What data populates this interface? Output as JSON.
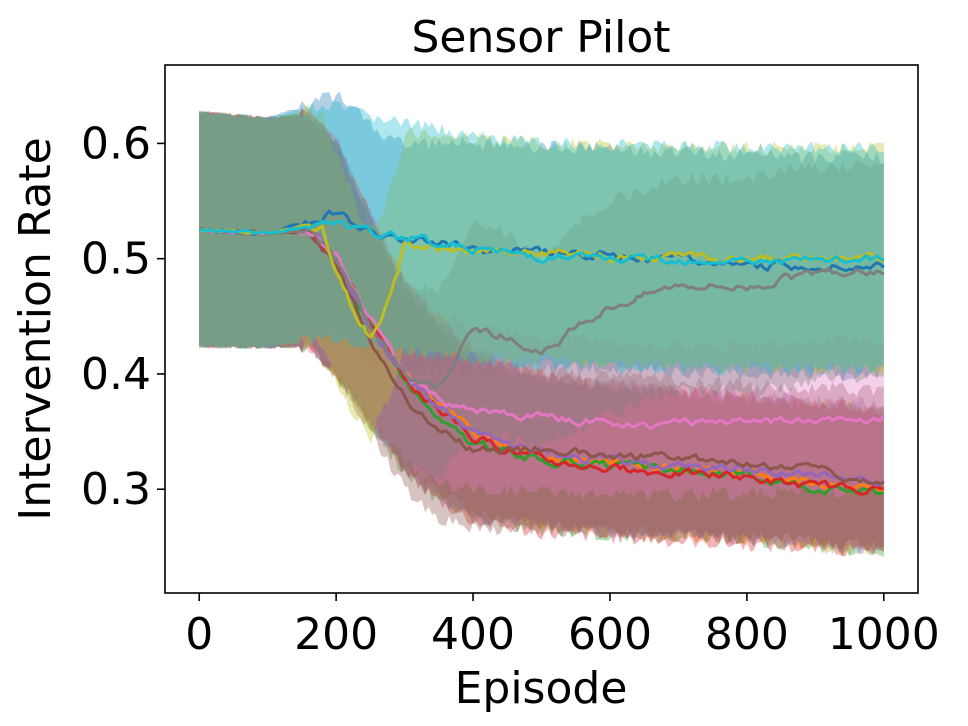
{
  "chart_data": {
    "type": "line",
    "title": "Sensor Pilot",
    "xlabel": "Episode",
    "ylabel": "Intervention Rate",
    "xlim": [
      -50,
      1050
    ],
    "ylim": [
      0.21,
      0.668
    ],
    "xticks": [
      0,
      200,
      400,
      600,
      800,
      1000
    ],
    "yticks": [
      0.3,
      0.4,
      0.5,
      0.6
    ],
    "xtick_labels": [
      "0",
      "200",
      "400",
      "600",
      "800",
      "1000"
    ],
    "ytick_labels": [
      "0.3",
      "0.4",
      "0.5",
      "0.6"
    ],
    "grid": false,
    "legend": "none",
    "band_opacity": 0.35,
    "series": [
      {
        "color": "#1f77b4",
        "x": [
          0,
          100,
          150,
          200,
          230,
          260,
          300,
          400,
          500,
          600,
          700,
          800,
          900,
          1000
        ],
        "y": [
          0.525,
          0.522,
          0.53,
          0.541,
          0.528,
          0.522,
          0.518,
          0.51,
          0.506,
          0.503,
          0.5,
          0.495,
          0.493,
          0.493
        ],
        "lower": [
          0.424,
          0.423,
          0.425,
          0.44,
          0.42,
          0.405,
          0.4,
          0.405,
          0.405,
          0.405,
          0.402,
          0.4,
          0.4,
          0.4
        ],
        "upper": [
          0.627,
          0.622,
          0.632,
          0.642,
          0.63,
          0.61,
          0.6,
          0.6,
          0.597,
          0.595,
          0.592,
          0.59,
          0.588,
          0.588
        ]
      },
      {
        "color": "#ff7f0e",
        "x": [
          0,
          100,
          160,
          200,
          250,
          300,
          350,
          400,
          500,
          600,
          700,
          800,
          900,
          1000
        ],
        "y": [
          0.525,
          0.522,
          0.525,
          0.5,
          0.44,
          0.4,
          0.375,
          0.35,
          0.33,
          0.322,
          0.318,
          0.315,
          0.305,
          0.3
        ],
        "lower": [
          0.424,
          0.423,
          0.424,
          0.4,
          0.36,
          0.32,
          0.3,
          0.28,
          0.27,
          0.265,
          0.26,
          0.255,
          0.25,
          0.245
        ],
        "upper": [
          0.627,
          0.622,
          0.626,
          0.6,
          0.54,
          0.48,
          0.45,
          0.42,
          0.4,
          0.39,
          0.385,
          0.38,
          0.375,
          0.37
        ]
      },
      {
        "color": "#2ca02c",
        "x": [
          0,
          100,
          160,
          200,
          250,
          300,
          350,
          400,
          500,
          600,
          700,
          800,
          900,
          1000
        ],
        "y": [
          0.525,
          0.522,
          0.524,
          0.498,
          0.442,
          0.395,
          0.36,
          0.34,
          0.325,
          0.32,
          0.316,
          0.312,
          0.302,
          0.298
        ],
        "lower": [
          0.424,
          0.423,
          0.424,
          0.4,
          0.355,
          0.315,
          0.29,
          0.275,
          0.265,
          0.26,
          0.258,
          0.255,
          0.25,
          0.245
        ],
        "upper": [
          0.627,
          0.622,
          0.625,
          0.598,
          0.535,
          0.475,
          0.44,
          0.415,
          0.395,
          0.388,
          0.382,
          0.378,
          0.372,
          0.368
        ]
      },
      {
        "color": "#d62728",
        "x": [
          0,
          100,
          160,
          200,
          250,
          300,
          350,
          400,
          500,
          600,
          700,
          800,
          900,
          1000
        ],
        "y": [
          0.525,
          0.522,
          0.524,
          0.502,
          0.445,
          0.392,
          0.37,
          0.345,
          0.325,
          0.318,
          0.314,
          0.31,
          0.302,
          0.3
        ],
        "lower": [
          0.424,
          0.423,
          0.424,
          0.402,
          0.36,
          0.315,
          0.29,
          0.272,
          0.262,
          0.258,
          0.255,
          0.252,
          0.248,
          0.245
        ],
        "upper": [
          0.627,
          0.622,
          0.625,
          0.6,
          0.538,
          0.478,
          0.445,
          0.418,
          0.398,
          0.39,
          0.385,
          0.38,
          0.375,
          0.37
        ]
      },
      {
        "color": "#9467bd",
        "x": [
          0,
          100,
          160,
          200,
          250,
          300,
          350,
          400,
          500,
          600,
          700,
          800,
          900,
          1000
        ],
        "y": [
          0.525,
          0.522,
          0.525,
          0.5,
          0.44,
          0.398,
          0.372,
          0.348,
          0.332,
          0.325,
          0.32,
          0.318,
          0.312,
          0.308
        ],
        "lower": [
          0.424,
          0.423,
          0.424,
          0.4,
          0.358,
          0.318,
          0.292,
          0.275,
          0.268,
          0.262,
          0.26,
          0.256,
          0.252,
          0.248
        ],
        "upper": [
          0.627,
          0.622,
          0.626,
          0.6,
          0.536,
          0.478,
          0.448,
          0.42,
          0.4,
          0.392,
          0.388,
          0.384,
          0.378,
          0.372
        ]
      },
      {
        "color": "#8c564b",
        "x": [
          0,
          100,
          160,
          200,
          250,
          300,
          350,
          400,
          500,
          600,
          700,
          800,
          900,
          1000
        ],
        "y": [
          0.525,
          0.522,
          0.523,
          0.495,
          0.43,
          0.38,
          0.35,
          0.335,
          0.335,
          0.33,
          0.328,
          0.322,
          0.318,
          0.305
        ],
        "lower": [
          0.424,
          0.423,
          0.424,
          0.398,
          0.35,
          0.3,
          0.275,
          0.265,
          0.265,
          0.262,
          0.26,
          0.258,
          0.255,
          0.25
        ],
        "upper": [
          0.627,
          0.622,
          0.624,
          0.595,
          0.528,
          0.468,
          0.435,
          0.41,
          0.402,
          0.398,
          0.395,
          0.39,
          0.388,
          0.385
        ]
      },
      {
        "color": "#e377c2",
        "x": [
          0,
          100,
          160,
          200,
          250,
          300,
          350,
          400,
          500,
          600,
          700,
          800,
          900,
          1000
        ],
        "y": [
          0.525,
          0.522,
          0.524,
          0.505,
          0.45,
          0.4,
          0.375,
          0.368,
          0.362,
          0.358,
          0.356,
          0.358,
          0.36,
          0.362
        ],
        "lower": [
          0.424,
          0.423,
          0.424,
          0.405,
          0.362,
          0.325,
          0.305,
          0.3,
          0.298,
          0.295,
          0.295,
          0.296,
          0.298,
          0.3
        ],
        "upper": [
          0.627,
          0.622,
          0.625,
          0.605,
          0.54,
          0.48,
          0.452,
          0.44,
          0.432,
          0.428,
          0.425,
          0.425,
          0.428,
          0.43
        ]
      },
      {
        "color": "#7f7f7f",
        "x": [
          0,
          100,
          160,
          200,
          250,
          300,
          350,
          400,
          450,
          500,
          550,
          600,
          700,
          800,
          900,
          1000
        ],
        "y": [
          0.525,
          0.522,
          0.524,
          0.5,
          0.44,
          0.4,
          0.39,
          0.44,
          0.432,
          0.415,
          0.44,
          0.458,
          0.478,
          0.475,
          0.488,
          0.49
        ],
        "lower": [
          0.424,
          0.423,
          0.424,
          0.402,
          0.355,
          0.32,
          0.31,
          0.35,
          0.345,
          0.335,
          0.35,
          0.365,
          0.385,
          0.385,
          0.395,
          0.398
        ],
        "upper": [
          0.627,
          0.622,
          0.625,
          0.6,
          0.535,
          0.48,
          0.47,
          0.53,
          0.522,
          0.5,
          0.53,
          0.55,
          0.57,
          0.568,
          0.58,
          0.582
        ]
      },
      {
        "color": "#bcbd22",
        "x": [
          0,
          100,
          160,
          180,
          200,
          230,
          250,
          270,
          290,
          300,
          350,
          400,
          500,
          600,
          700,
          800,
          900,
          1000
        ],
        "y": [
          0.525,
          0.522,
          0.528,
          0.525,
          0.49,
          0.45,
          0.43,
          0.455,
          0.49,
          0.515,
          0.51,
          0.508,
          0.505,
          0.503,
          0.502,
          0.5,
          0.5,
          0.5
        ],
        "lower": [
          0.424,
          0.423,
          0.428,
          0.425,
          0.395,
          0.36,
          0.345,
          0.37,
          0.4,
          0.42,
          0.418,
          0.415,
          0.412,
          0.41,
          0.408,
          0.406,
          0.405,
          0.405
        ],
        "upper": [
          0.627,
          0.622,
          0.628,
          0.625,
          0.59,
          0.545,
          0.52,
          0.545,
          0.58,
          0.61,
          0.606,
          0.604,
          0.6,
          0.598,
          0.596,
          0.596,
          0.596,
          0.596
        ]
      },
      {
        "color": "#17becf",
        "x": [
          0,
          100,
          160,
          200,
          250,
          300,
          400,
          500,
          600,
          700,
          800,
          900,
          1000
        ],
        "y": [
          0.525,
          0.522,
          0.528,
          0.53,
          0.522,
          0.518,
          0.508,
          0.502,
          0.5,
          0.5,
          0.498,
          0.498,
          0.5
        ],
        "lower": [
          0.424,
          0.423,
          0.43,
          0.432,
          0.425,
          0.42,
          0.412,
          0.408,
          0.406,
          0.405,
          0.404,
          0.404,
          0.404
        ],
        "upper": [
          0.627,
          0.622,
          0.63,
          0.632,
          0.624,
          0.618,
          0.606,
          0.6,
          0.598,
          0.598,
          0.596,
          0.596,
          0.596
        ]
      }
    ]
  }
}
